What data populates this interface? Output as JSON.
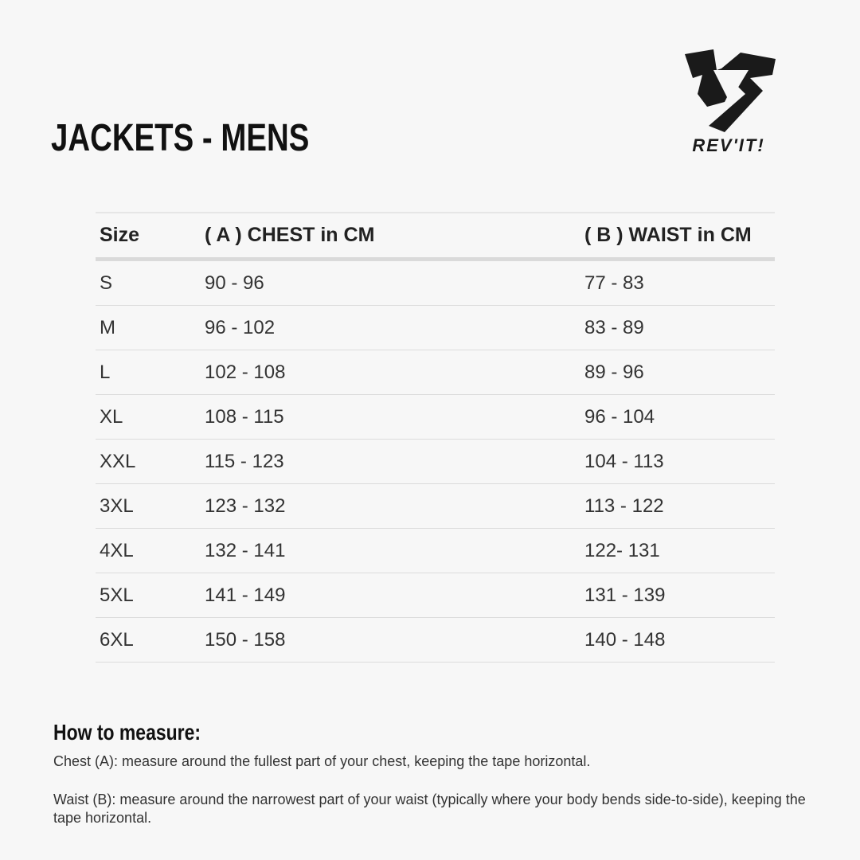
{
  "title": "JACKETS - MENS",
  "logo": {
    "text": "REV'IT!"
  },
  "table": {
    "headers": [
      "Size",
      "( A ) CHEST in CM",
      "( B ) WAIST in CM"
    ],
    "rows": [
      [
        "S",
        "90 - 96",
        "77 - 83"
      ],
      [
        "M",
        "96 - 102",
        "83 - 89"
      ],
      [
        "L",
        "102 - 108",
        "89 - 96"
      ],
      [
        "XL",
        "108 - 115",
        "96 - 104"
      ],
      [
        "XXL",
        "115 - 123",
        "104 - 113"
      ],
      [
        "3XL",
        "123 - 132",
        "113 - 122"
      ],
      [
        "4XL",
        "132 - 141",
        "122- 131"
      ],
      [
        "5XL",
        "141 - 149",
        "131 - 139"
      ],
      [
        "6XL",
        "150 - 158",
        "140 - 148"
      ]
    ]
  },
  "howto": {
    "heading": "How to measure:",
    "chest": "Chest (A): measure around the fullest part of your chest, keeping the tape horizontal.",
    "waist": "Waist (B): measure around the narrowest part of your waist (typically where your body bends side-to-side), keeping the tape horizontal."
  }
}
